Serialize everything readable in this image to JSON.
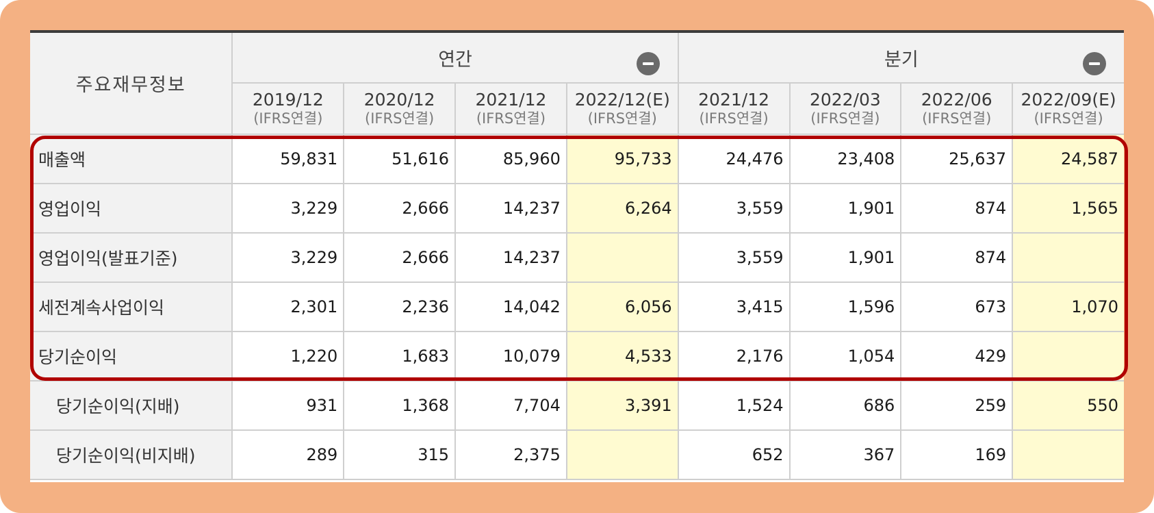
{
  "header": {
    "label": "주요재무정보",
    "annual_label": "연간",
    "quarterly_label": "분기",
    "annual_toggle_icon": "minus-circle-icon",
    "quarterly_toggle_icon": "minus-circle-icon",
    "periods": [
      {
        "date": "2019/12",
        "sub": "(IFRS연결)"
      },
      {
        "date": "2020/12",
        "sub": "(IFRS연결)"
      },
      {
        "date": "2021/12",
        "sub": "(IFRS연결)"
      },
      {
        "date": "2022/12(E)",
        "sub": "(IFRS연결)"
      },
      {
        "date": "2021/12",
        "sub": "(IFRS연결)"
      },
      {
        "date": "2022/03",
        "sub": "(IFRS연결)"
      },
      {
        "date": "2022/06",
        "sub": "(IFRS연결)"
      },
      {
        "date": "2022/09(E)",
        "sub": "(IFRS연결)"
      }
    ]
  },
  "rows": [
    {
      "label": "매출액",
      "values": [
        "59,831",
        "51,616",
        "85,960",
        "95,733",
        "24,476",
        "23,408",
        "25,637",
        "24,587"
      ]
    },
    {
      "label": "영업이익",
      "values": [
        "3,229",
        "2,666",
        "14,237",
        "6,264",
        "3,559",
        "1,901",
        "874",
        "1,565"
      ]
    },
    {
      "label": "영업이익(발표기준)",
      "values": [
        "3,229",
        "2,666",
        "14,237",
        "",
        "3,559",
        "1,901",
        "874",
        ""
      ]
    },
    {
      "label": "세전계속사업이익",
      "values": [
        "2,301",
        "2,236",
        "14,042",
        "6,056",
        "3,415",
        "1,596",
        "673",
        "1,070"
      ]
    },
    {
      "label": "당기순이익",
      "values": [
        "1,220",
        "1,683",
        "10,079",
        "4,533",
        "2,176",
        "1,054",
        "429",
        ""
      ]
    },
    {
      "label": "당기순이익(지배)",
      "values": [
        "931",
        "1,368",
        "7,704",
        "3,391",
        "1,524",
        "686",
        "259",
        "550"
      ]
    },
    {
      "label": "당기순이익(비지배)",
      "values": [
        "289",
        "315",
        "2,375",
        "",
        "652",
        "367",
        "169",
        ""
      ]
    }
  ],
  "colors": {
    "frame": "#f4b183",
    "highlight_border": "#b00000",
    "estimate_fill": "#fffbd1",
    "header_fill": "#f2f2f2"
  }
}
